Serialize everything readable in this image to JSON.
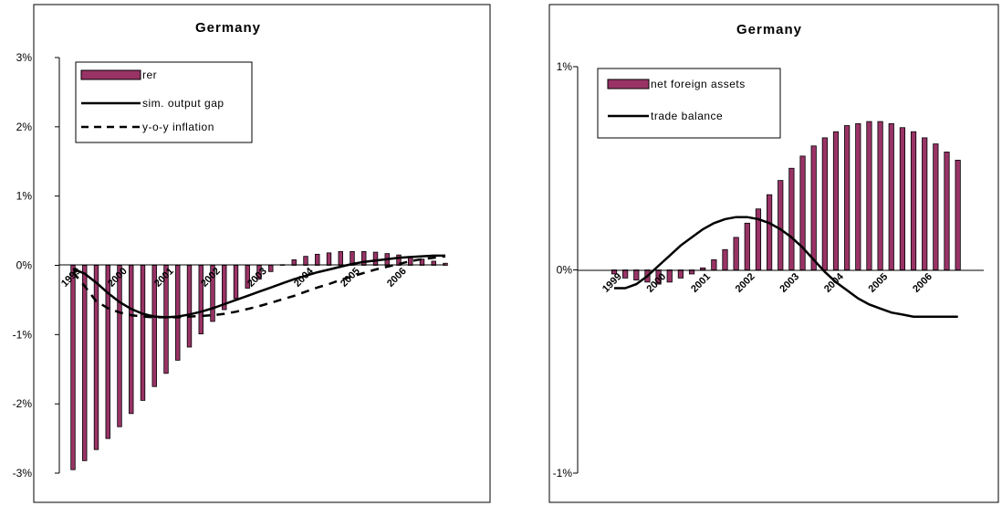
{
  "colors": {
    "bar": "#993366",
    "bar_stroke": "#000000",
    "line": "#000000",
    "frame": "#000000"
  },
  "chart_data": [
    {
      "type": "bar",
      "title": "Germany",
      "ylim": [
        -0.03,
        0.03
      ],
      "y_ticks": [
        {
          "value": 0.03,
          "label": "3%"
        },
        {
          "value": 0.02,
          "label": "2%"
        },
        {
          "value": 0.01,
          "label": "1%"
        },
        {
          "value": 0.0,
          "label": "0%"
        },
        {
          "value": -0.01,
          "label": "-1%"
        },
        {
          "value": -0.02,
          "label": "-2%"
        },
        {
          "value": -0.03,
          "label": "-3%"
        }
      ],
      "x_ticks": [
        {
          "index": 0,
          "label": "1999"
        },
        {
          "index": 4,
          "label": "2000"
        },
        {
          "index": 8,
          "label": "2001"
        },
        {
          "index": 12,
          "label": "2002"
        },
        {
          "index": 16,
          "label": "2003"
        },
        {
          "index": 20,
          "label": "2004"
        },
        {
          "index": 24,
          "label": "2005"
        },
        {
          "index": 28,
          "label": "2006"
        }
      ],
      "legend_position": "top-left",
      "series": [
        {
          "name": "rer",
          "kind": "bar",
          "values": [
            -0.0295,
            -0.0282,
            -0.0266,
            -0.025,
            -0.0233,
            -0.0214,
            -0.0195,
            -0.0175,
            -0.0156,
            -0.0137,
            -0.0118,
            -0.0099,
            -0.0081,
            -0.0064,
            -0.0048,
            -0.0033,
            -0.002,
            -0.0009,
            0.0001,
            0.0008,
            0.0013,
            0.0016,
            0.0018,
            0.002,
            0.002,
            0.002,
            0.0019,
            0.0017,
            0.0015,
            0.0012,
            0.0009,
            0.0006,
            0.0003
          ]
        },
        {
          "name": "sim. output gap",
          "kind": "line",
          "dash": "solid",
          "values": [
            -0.0005,
            -0.0012,
            -0.0025,
            -0.004,
            -0.0053,
            -0.0063,
            -0.007,
            -0.0074,
            -0.0075,
            -0.0074,
            -0.0071,
            -0.0067,
            -0.0062,
            -0.0056,
            -0.005,
            -0.0044,
            -0.0038,
            -0.0032,
            -0.0026,
            -0.002,
            -0.0015,
            -0.001,
            -0.0006,
            -0.0002,
            0.0002,
            0.0005,
            0.0007,
            0.0009,
            0.0011,
            0.0012,
            0.0013,
            0.0014,
            0.0014
          ]
        },
        {
          "name": "y-o-y inflation",
          "kind": "line",
          "dash": "dashed",
          "values": [
            -0.001,
            -0.003,
            -0.0052,
            -0.0062,
            -0.0068,
            -0.0072,
            -0.0074,
            -0.0075,
            -0.0075,
            -0.0075,
            -0.0074,
            -0.0073,
            -0.0072,
            -0.007,
            -0.0067,
            -0.0063,
            -0.0059,
            -0.0054,
            -0.0049,
            -0.0044,
            -0.0038,
            -0.0032,
            -0.0027,
            -0.0021,
            -0.0016,
            -0.0011,
            -0.0006,
            -0.0002,
            0.0002,
            0.0006,
            0.0009,
            0.0011,
            0.0013
          ]
        }
      ]
    },
    {
      "type": "bar",
      "title": "Germany",
      "ylim": [
        -0.01,
        0.01
      ],
      "y_ticks": [
        {
          "value": 0.01,
          "label": "1%"
        },
        {
          "value": 0.0,
          "label": "0%"
        },
        {
          "value": -0.01,
          "label": "-1%"
        }
      ],
      "x_ticks": [
        {
          "index": 0,
          "label": "1999"
        },
        {
          "index": 4,
          "label": "2000"
        },
        {
          "index": 8,
          "label": "2001"
        },
        {
          "index": 12,
          "label": "2002"
        },
        {
          "index": 16,
          "label": "2003"
        },
        {
          "index": 20,
          "label": "2004"
        },
        {
          "index": 24,
          "label": "2005"
        },
        {
          "index": 28,
          "label": "2006"
        }
      ],
      "legend_position": "top-left",
      "series": [
        {
          "name": "net foreign assets",
          "kind": "bar",
          "values": [
            -0.0002,
            -0.0004,
            -0.0005,
            -0.0006,
            -0.0007,
            -0.0006,
            -0.0004,
            -0.0002,
            0.0001,
            0.0005,
            0.001,
            0.0016,
            0.0023,
            0.003,
            0.0037,
            0.0044,
            0.005,
            0.0056,
            0.0061,
            0.0065,
            0.0068,
            0.0071,
            0.0072,
            0.0073,
            0.0073,
            0.0072,
            0.007,
            0.0068,
            0.0065,
            0.0062,
            0.0058,
            0.0054
          ]
        },
        {
          "name": "trade balance",
          "kind": "line",
          "dash": "solid",
          "values": [
            -0.0009,
            -0.0009,
            -0.0007,
            -0.0003,
            0.0002,
            0.0007,
            0.0012,
            0.0016,
            0.002,
            0.0023,
            0.0025,
            0.0026,
            0.0026,
            0.0025,
            0.0023,
            0.002,
            0.0016,
            0.0011,
            0.0005,
            -0.0001,
            -0.0006,
            -0.001,
            -0.0014,
            -0.0017,
            -0.0019,
            -0.0021,
            -0.0022,
            -0.0023,
            -0.0023,
            -0.0023,
            -0.0023,
            -0.0023
          ]
        }
      ]
    }
  ]
}
